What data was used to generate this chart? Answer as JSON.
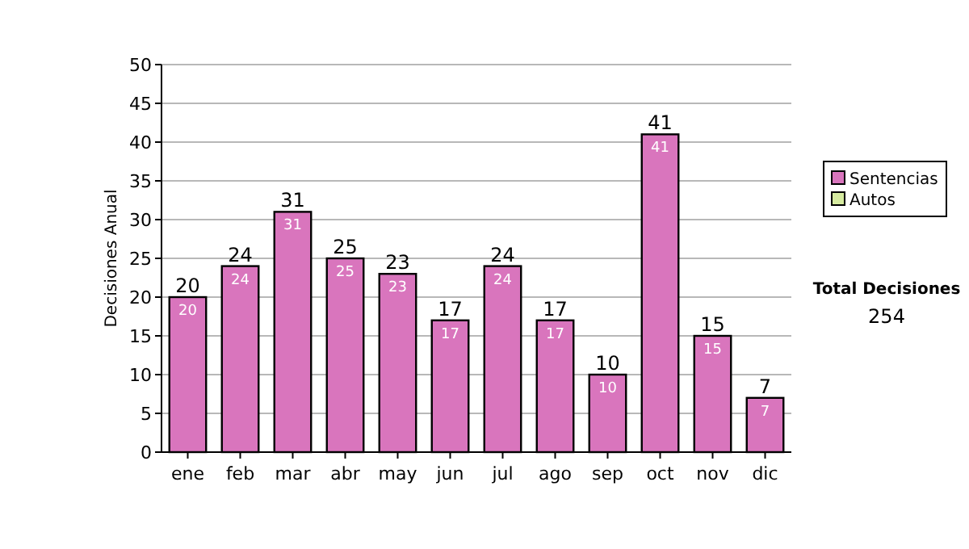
{
  "chart_data": {
    "type": "bar",
    "stacked": true,
    "ylabel": "Decisiones Anual",
    "categories": [
      "ene",
      "feb",
      "mar",
      "abr",
      "may",
      "jun",
      "jul",
      "ago",
      "sep",
      "oct",
      "nov",
      "dic"
    ],
    "series": [
      {
        "name": "Sentencias",
        "color": "#d975bd",
        "values": [
          20,
          24,
          31,
          25,
          23,
          17,
          24,
          17,
          10,
          41,
          15,
          7
        ],
        "value_labels": [
          "20",
          "24",
          "31",
          "25",
          "23",
          "17",
          "24",
          "17",
          "10",
          "41",
          "15",
          "7"
        ]
      },
      {
        "name": "Autos",
        "color": "#d6eba0",
        "values": [
          0,
          0,
          0,
          0,
          0,
          0,
          0,
          0,
          0,
          0,
          0,
          0
        ],
        "value_labels": [
          null,
          null,
          null,
          null,
          null,
          null,
          null,
          null,
          null,
          null,
          null,
          null
        ]
      }
    ],
    "totals": [
      "20",
      "24",
      "31",
      "25",
      "23",
      "17",
      "24",
      "17",
      "10",
      "41",
      "15",
      "7"
    ],
    "ylim": [
      0,
      50
    ],
    "yticks": [
      0,
      5,
      10,
      15,
      20,
      25,
      30,
      35,
      40,
      45,
      50
    ],
    "grid": "y",
    "legend": "right",
    "annotations": [
      "Total Decisiones",
      "254"
    ]
  }
}
